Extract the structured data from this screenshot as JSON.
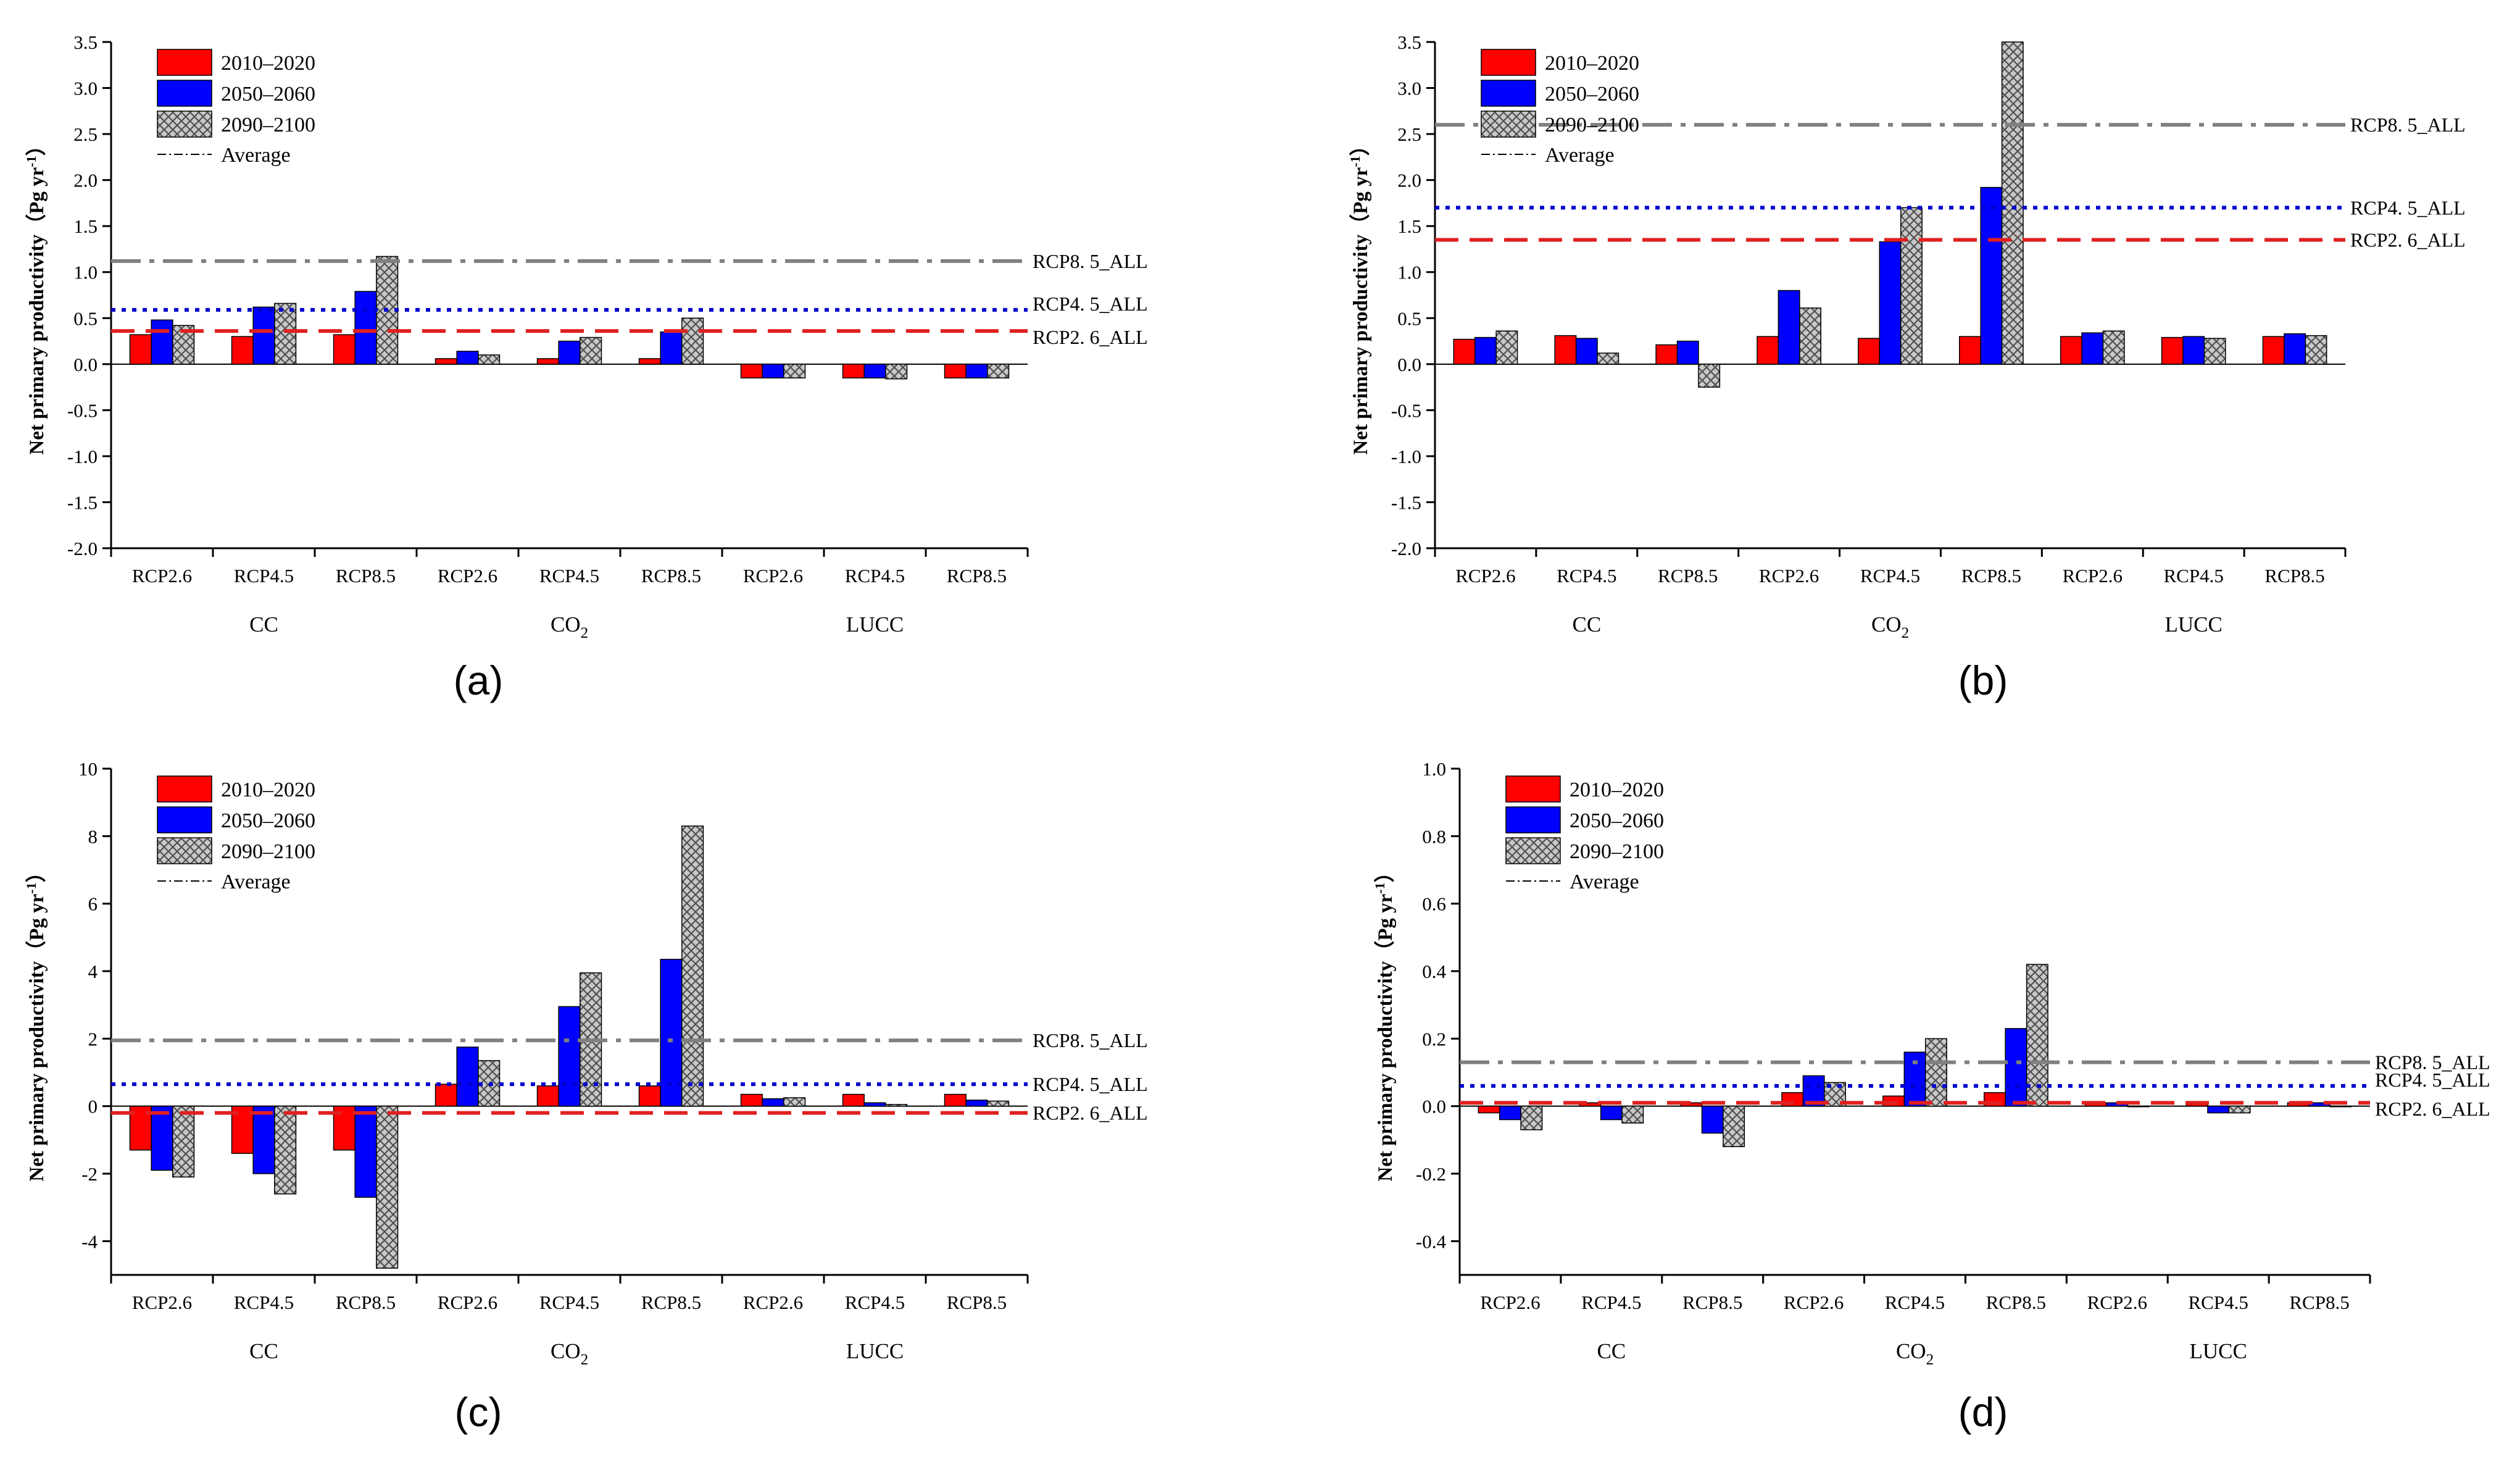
{
  "colors": {
    "p2010": "#ff0000",
    "p2050": "#0000ff",
    "p2090_fill": "#c8c8c8",
    "p2090_hatch": "#555555",
    "rcp85_line": "#808080",
    "rcp45_line": "#0000cc",
    "rcp26_line": "#e02020"
  },
  "chart_data": [
    {
      "type": "bar",
      "panel_label": "(a)",
      "ylabel": "Net primary productivity（Pg yr",
      "ylabel_sup": "-1",
      "ylabel_close": "）",
      "ylim": [
        -2.0,
        3.5
      ],
      "yticks": [
        "-2.0",
        "-1.5",
        "-1.0",
        "-0.5",
        "0.0",
        "0.5",
        "1.0",
        "1.5",
        "2.0",
        "2.5",
        "3.0",
        "3.5"
      ],
      "categories": [
        "RCP2.6",
        "RCP4.5",
        "RCP8.5",
        "RCP2.6",
        "RCP4.5",
        "RCP8.5",
        "RCP2.6",
        "RCP4.5",
        "RCP8.5"
      ],
      "groups": [
        {
          "label": "CC"
        },
        {
          "label": "CO",
          "sub": "2"
        },
        {
          "label": "LUCC"
        }
      ],
      "series": [
        {
          "name": "2010–2020",
          "values": [
            0.32,
            0.3,
            0.32,
            0.06,
            0.06,
            0.06,
            -0.15,
            -0.15,
            -0.15
          ]
        },
        {
          "name": "2050–2060",
          "values": [
            0.48,
            0.62,
            0.79,
            0.14,
            0.25,
            0.35,
            -0.15,
            -0.15,
            -0.15
          ]
        },
        {
          "name": "2090–2100",
          "values": [
            0.42,
            0.66,
            1.17,
            0.1,
            0.29,
            0.5,
            -0.15,
            -0.16,
            -0.15
          ]
        }
      ],
      "legend_average": "Average",
      "reference_lines": [
        {
          "label": "RCP8. 5_ALL",
          "value": 1.12,
          "style": "dashdot"
        },
        {
          "label": "RCP4. 5_ALL",
          "value": 0.59,
          "style": "dot"
        },
        {
          "label": "RCP2. 6_ALL",
          "value": 0.36,
          "style": "dash"
        }
      ]
    },
    {
      "type": "bar",
      "panel_label": "(b)",
      "ylabel": "Net primary productivity（Pg yr",
      "ylabel_sup": "-1",
      "ylabel_close": "）",
      "ylim": [
        -2.0,
        3.5
      ],
      "yticks": [
        "-2.0",
        "-1.5",
        "-1.0",
        "-0.5",
        "0.0",
        "0.5",
        "1.0",
        "1.5",
        "2.0",
        "2.5",
        "3.0",
        "3.5"
      ],
      "categories": [
        "RCP2.6",
        "RCP4.5",
        "RCP8.5",
        "RCP2.6",
        "RCP4.5",
        "RCP8.5",
        "RCP2.6",
        "RCP4.5",
        "RCP8.5"
      ],
      "groups": [
        {
          "label": "CC"
        },
        {
          "label": "CO",
          "sub": "2"
        },
        {
          "label": "LUCC"
        }
      ],
      "series": [
        {
          "name": "2010–2020",
          "values": [
            0.27,
            0.31,
            0.21,
            0.3,
            0.28,
            0.3,
            0.3,
            0.29,
            0.3
          ]
        },
        {
          "name": "2050–2060",
          "values": [
            0.29,
            0.28,
            0.25,
            0.8,
            1.33,
            1.92,
            0.34,
            0.3,
            0.33
          ]
        },
        {
          "name": "2090–2100",
          "values": [
            0.36,
            0.12,
            -0.25,
            0.61,
            1.7,
            3.5,
            0.36,
            0.28,
            0.31
          ]
        }
      ],
      "legend_average": "Average",
      "reference_lines": [
        {
          "label": "RCP8. 5_ALL",
          "value": 2.6,
          "style": "dashdot"
        },
        {
          "label": "RCP4. 5_ALL",
          "value": 1.7,
          "style": "dot"
        },
        {
          "label": "RCP2. 6_ALL",
          "value": 1.35,
          "style": "dash"
        }
      ]
    },
    {
      "type": "bar",
      "panel_label": "(c)",
      "ylabel": "Net primary productivity（Pg yr",
      "ylabel_sup": "-1",
      "ylabel_close": "）",
      "ylim": [
        -5,
        10
      ],
      "yticks": [
        "-4",
        "-2",
        "0",
        "2",
        "4",
        "6",
        "8",
        "10"
      ],
      "ytick_values": [
        -4,
        -2,
        0,
        2,
        4,
        6,
        8,
        10
      ],
      "categories": [
        "RCP2.6",
        "RCP4.5",
        "RCP8.5",
        "RCP2.6",
        "RCP4.5",
        "RCP8.5",
        "RCP2.6",
        "RCP4.5",
        "RCP8.5"
      ],
      "groups": [
        {
          "label": "CC"
        },
        {
          "label": "CO",
          "sub": "2"
        },
        {
          "label": "LUCC"
        }
      ],
      "series": [
        {
          "name": "2010–2020",
          "values": [
            -1.3,
            -1.4,
            -1.3,
            0.65,
            0.6,
            0.6,
            0.35,
            0.35,
            0.35
          ]
        },
        {
          "name": "2050–2060",
          "values": [
            -1.9,
            -2.0,
            -2.7,
            1.75,
            2.95,
            4.35,
            0.22,
            0.1,
            0.18
          ]
        },
        {
          "name": "2090–2100",
          "values": [
            -2.1,
            -2.6,
            -4.8,
            1.35,
            3.95,
            8.3,
            0.25,
            0.05,
            0.15
          ]
        }
      ],
      "legend_average": "Average",
      "reference_lines": [
        {
          "label": "RCP8. 5_ALL",
          "value": 1.95,
          "style": "dashdot"
        },
        {
          "label": "RCP4. 5_ALL",
          "value": 0.65,
          "style": "dot"
        },
        {
          "label": "RCP2. 6_ALL",
          "value": -0.2,
          "style": "dash"
        }
      ]
    },
    {
      "type": "bar",
      "panel_label": "(d)",
      "ylabel": "Net primary productivity（Pg yr",
      "ylabel_sup": "-1",
      "ylabel_close": "）",
      "ylim": [
        -0.5,
        1.0
      ],
      "yticks": [
        "-0.4",
        "-0.2",
        "0.0",
        "0.2",
        "0.4",
        "0.6",
        "0.8",
        "1.0"
      ],
      "ytick_values": [
        -0.4,
        -0.2,
        0.0,
        0.2,
        0.4,
        0.6,
        0.8,
        1.0
      ],
      "categories": [
        "RCP2.6",
        "RCP4.5",
        "RCP8.5",
        "RCP2.6",
        "RCP4.5",
        "RCP8.5",
        "RCP2.6",
        "RCP4.5",
        "RCP8.5"
      ],
      "groups": [
        {
          "label": "CC"
        },
        {
          "label": "CO",
          "sub": "2"
        },
        {
          "label": "LUCC"
        }
      ],
      "series": [
        {
          "name": "2010–2020",
          "values": [
            -0.02,
            0.01,
            0.01,
            0.04,
            0.03,
            0.04,
            0.01,
            0.01,
            0.01
          ]
        },
        {
          "name": "2050–2060",
          "values": [
            -0.04,
            -0.04,
            -0.08,
            0.09,
            0.16,
            0.23,
            0.01,
            -0.02,
            0.01
          ]
        },
        {
          "name": "2090–2100",
          "values": [
            -0.07,
            -0.05,
            -0.12,
            0.07,
            0.2,
            0.42,
            0.0,
            -0.02,
            0.0
          ]
        }
      ],
      "legend_average": "Average",
      "reference_lines": [
        {
          "label": "RCP8. 5_ALL",
          "value": 0.13,
          "style": "dashdot"
        },
        {
          "label": "RCP4. 5_ALL",
          "value": 0.06,
          "style": "dot"
        },
        {
          "label": "RCP2. 6_ALL",
          "value": 0.01,
          "style": "dash"
        }
      ]
    }
  ]
}
